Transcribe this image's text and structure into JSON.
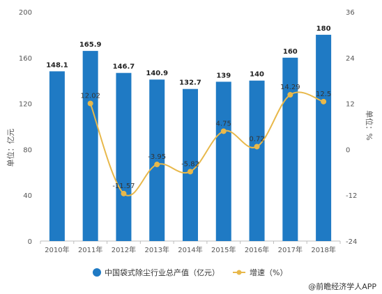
{
  "chart_data": {
    "type": "bar+line",
    "categories": [
      "2010年",
      "2011年",
      "2012年",
      "2013年",
      "2014年",
      "2015年",
      "2016年",
      "2017年",
      "2018年"
    ],
    "series": [
      {
        "name": "中国袋式除尘行业总产值（亿元）",
        "type": "bar",
        "axis": "left",
        "values": [
          148.1,
          165.9,
          146.7,
          140.9,
          132.7,
          139,
          140,
          160,
          180
        ],
        "labels": [
          "148.1",
          "165.9",
          "146.7",
          "140.9",
          "132.7",
          "139",
          "140",
          "160",
          "180"
        ]
      },
      {
        "name": "增速（%）",
        "type": "line",
        "axis": "right",
        "values": [
          null,
          12.02,
          -11.57,
          -3.95,
          -5.82,
          4.75,
          0.72,
          14.29,
          12.5
        ],
        "labels": [
          "",
          "12.02",
          "-11.57",
          "-3.95",
          "-5.82",
          "4.75",
          "0.72",
          "14.29",
          "12.5"
        ]
      }
    ],
    "ylabel_left": "单位：亿元",
    "ylabel_right": "单位：%",
    "ylim_left": [
      0,
      200
    ],
    "yticks_left": [
      0,
      40,
      80,
      120,
      160,
      200
    ],
    "ylim_right": [
      -24,
      36
    ],
    "yticks_right": [
      -24,
      -12,
      0,
      12,
      24,
      36
    ],
    "grid": false,
    "legend_position": "bottom",
    "colors": {
      "bar": "#1f7ac4",
      "line": "#e8b84a"
    }
  },
  "source": "@前瞻经济学人APP"
}
